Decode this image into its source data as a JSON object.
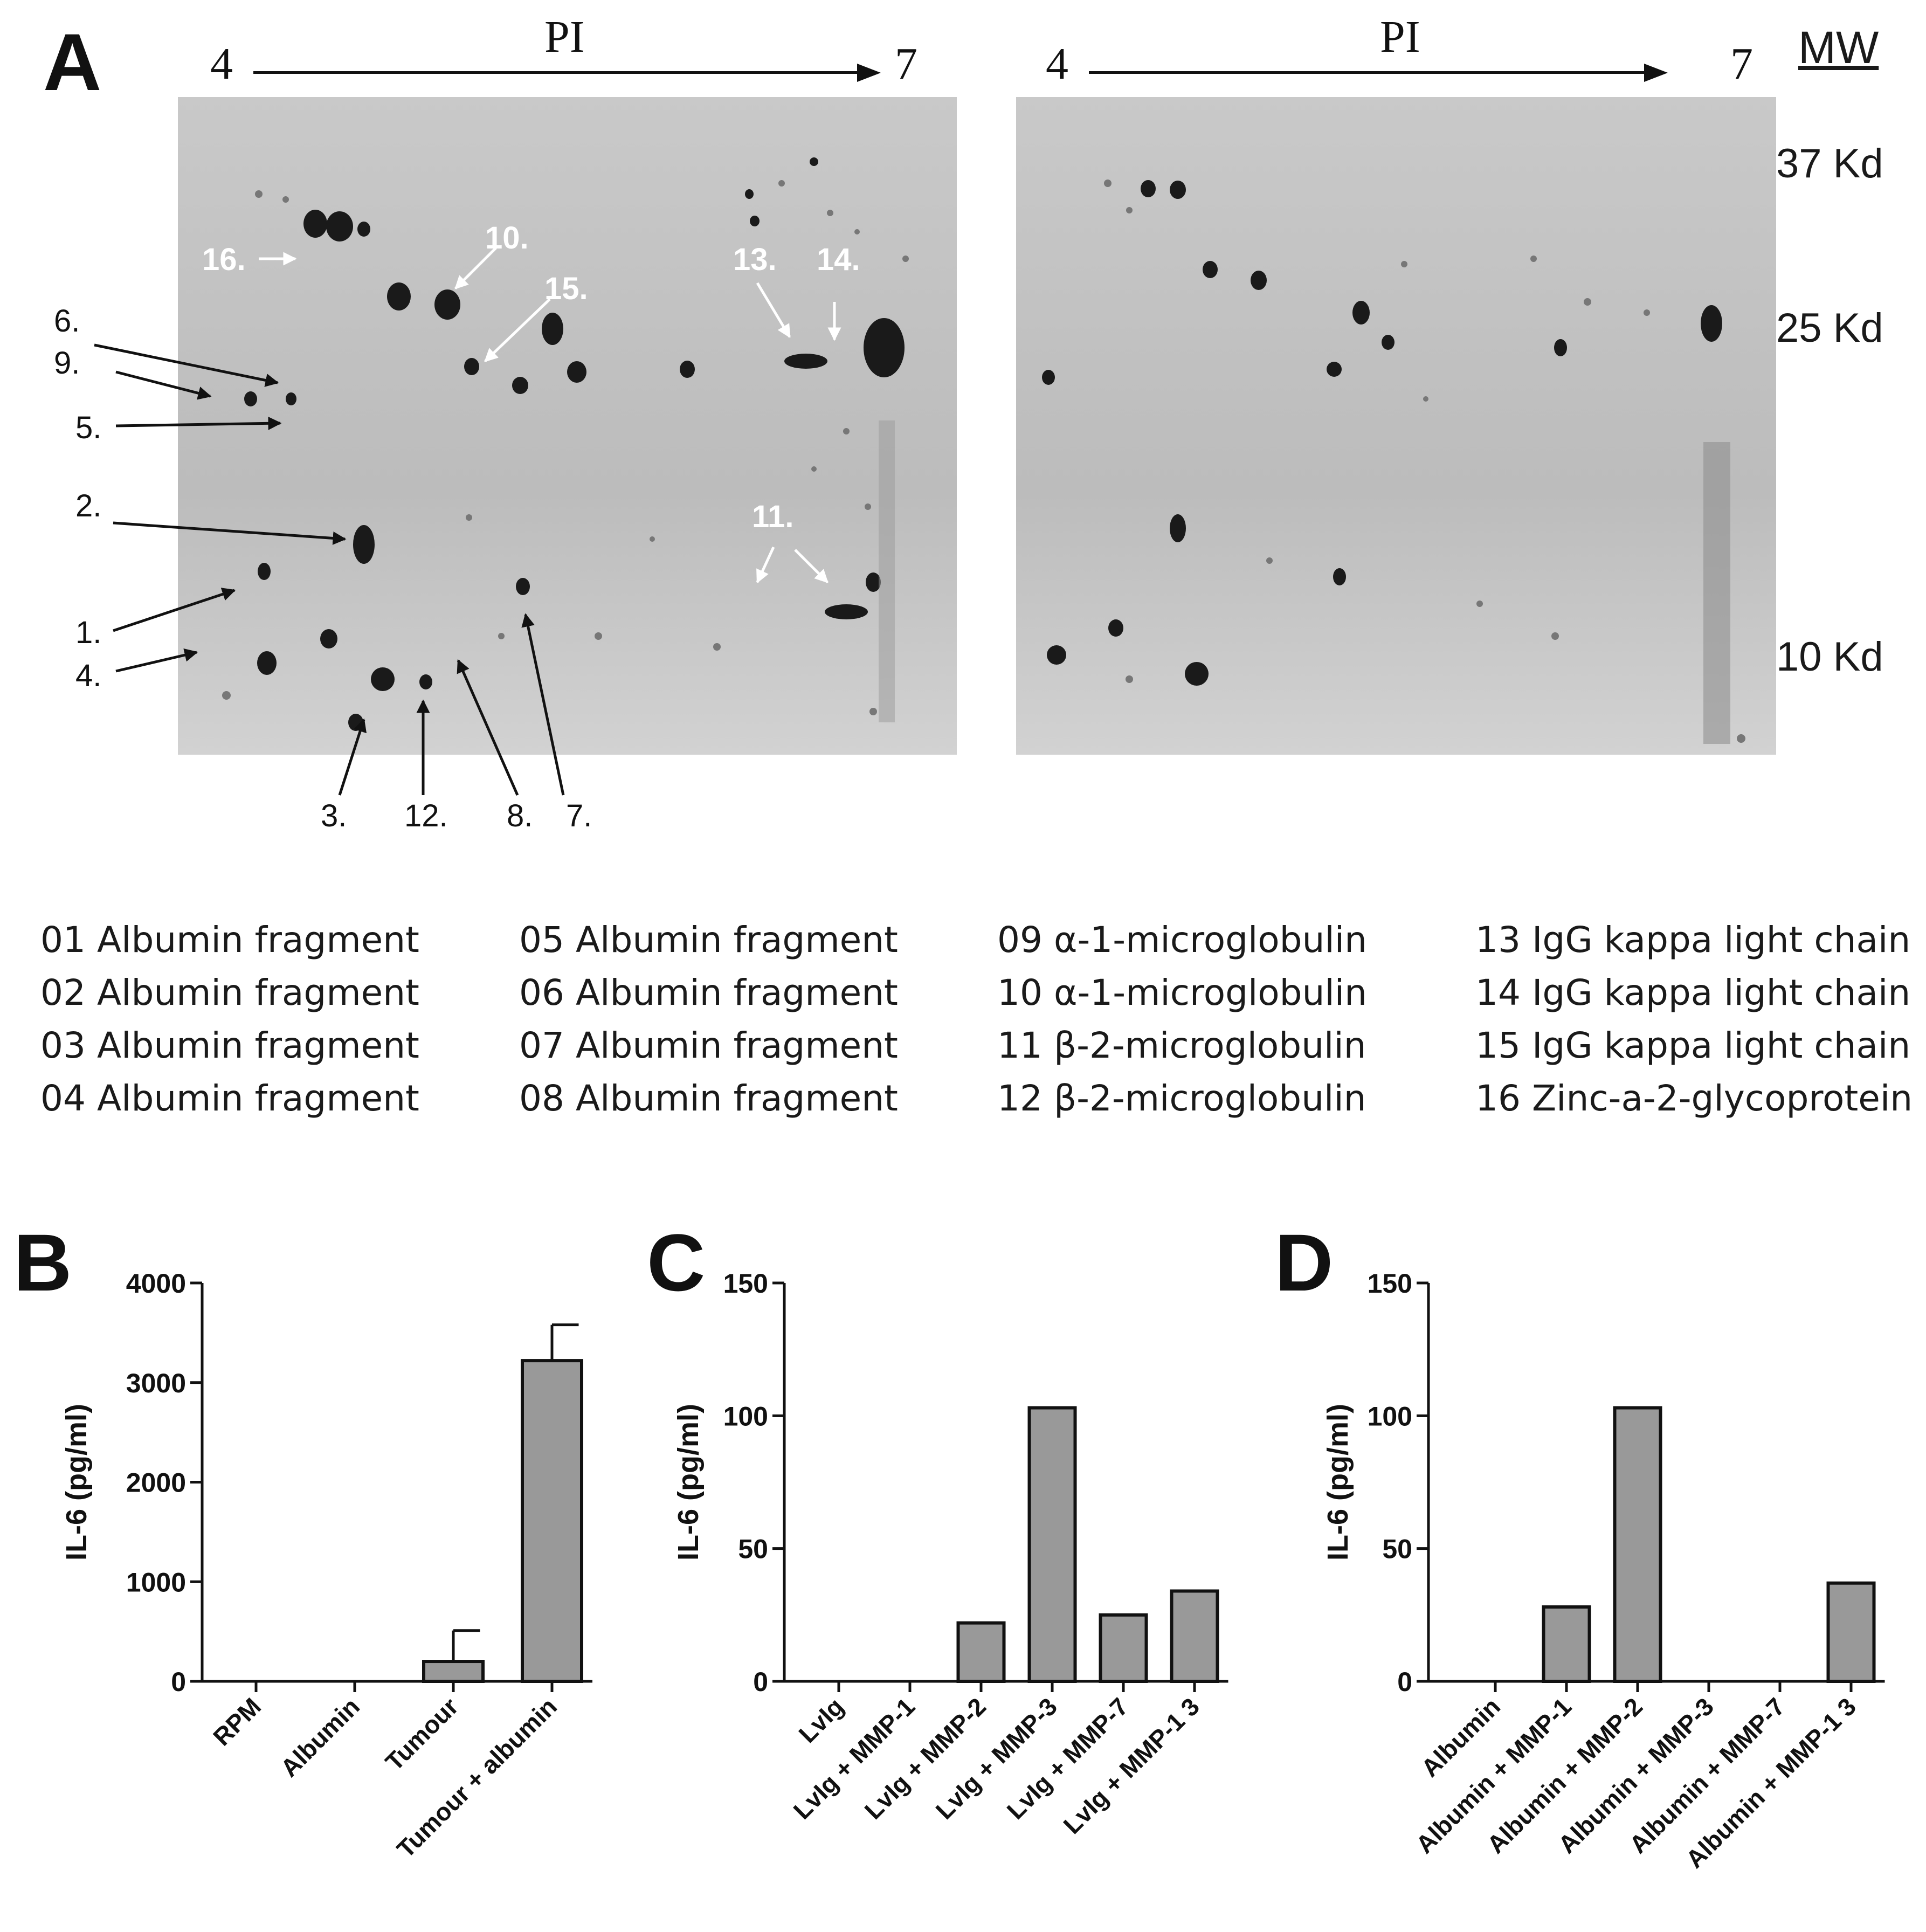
{
  "panelA": {
    "letter": "A",
    "left_gel": {
      "pi_title": "PI",
      "pi_low": "4",
      "pi_high": "7"
    },
    "right_gel": {
      "pi_title": "PI",
      "pi_low": "4",
      "pi_high": "7"
    },
    "mw": {
      "title": "MW",
      "markers": [
        "37 Kd",
        "25 Kd",
        "10 Kd"
      ]
    },
    "spot_labels_white": [
      "16.",
      "10.",
      "15.",
      "13.",
      "14.",
      "11."
    ],
    "spot_labels_black": [
      "6.",
      "9.",
      "5.",
      "2.",
      "1.",
      "4.",
      "3.",
      "12.",
      "8.",
      "7."
    ],
    "proteins": [
      [
        "01 Albumin  fragment",
        "02 Albumin  fragment",
        "03 Albumin  fragment",
        "04 Albumin  fragment"
      ],
      [
        "05 Albumin  fragment",
        "06 Albumin  fragment",
        "07 Albumin  fragment",
        "08 Albumin  fragment"
      ],
      [
        "09 α-1-microglobulin",
        "10 α-1-microglobulin",
        "11 β-2-microglobulin",
        "12 β-2-microglobulin"
      ],
      [
        "13 IgG kappa light chain",
        "14 IgG kappa light chain",
        "15 IgG kappa light chain",
        "16 Zinc-a-2-glycoprotein"
      ]
    ]
  },
  "chart_data": [
    {
      "panel": "B",
      "type": "bar",
      "ylabel": "IL-6 (pg/ml)",
      "ylim": [
        0,
        4000
      ],
      "yticks": [
        0,
        1000,
        2000,
        3000,
        4000
      ],
      "categories": [
        "RPM",
        "Albumin",
        "Tumour",
        "Tumour + albumin"
      ],
      "values": [
        0,
        0,
        200,
        3220
      ],
      "error": [
        0,
        0,
        310,
        360
      ],
      "bar_color": "#999999"
    },
    {
      "panel": "C",
      "type": "bar",
      "ylabel": "IL-6 (pg/ml)",
      "ylim": [
        0,
        150
      ],
      "yticks": [
        0,
        50,
        100,
        150
      ],
      "categories": [
        "LvIg",
        "LvIg + MMP-1",
        "LvIg + MMP-2",
        "LvIg + MMP-3",
        "LvIg + MMP-7",
        "LvIg + MMP-1   3"
      ],
      "values": [
        0,
        0,
        22,
        103,
        25,
        34
      ],
      "bar_color": "#999999"
    },
    {
      "panel": "D",
      "type": "bar",
      "ylabel": "IL-6 (pg/ml)",
      "ylim": [
        0,
        150
      ],
      "yticks": [
        0,
        50,
        100,
        150
      ],
      "categories": [
        "Albumin",
        "Albumin + MMP-1",
        "Albumin + MMP-2",
        "Albumin + MMP-3",
        "Albumin + MMP-7",
        "Albumin + MMP-1   3"
      ],
      "values": [
        0,
        28,
        103,
        0,
        0,
        37
      ],
      "bar_color": "#999999"
    }
  ]
}
